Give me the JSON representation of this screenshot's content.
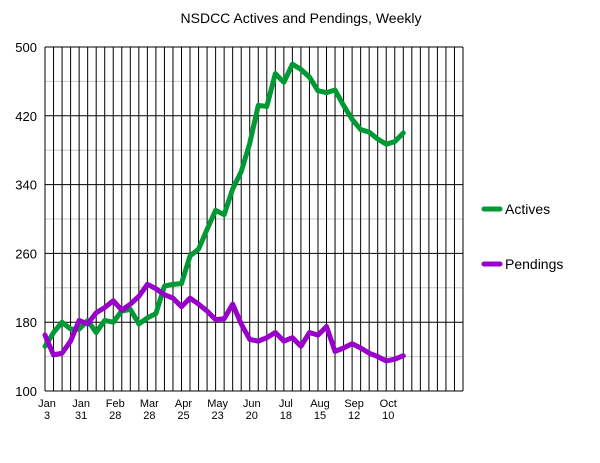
{
  "chart_data": {
    "type": "line",
    "title": "NSDCC Actives and Pendings, Weekly",
    "xlabel": "",
    "ylabel": "",
    "ylim": [
      100,
      500
    ],
    "y_ticks": [
      "100",
      "180",
      "260",
      "340",
      "420",
      "500"
    ],
    "x_tick_labels": [
      {
        "week": 0,
        "month": "Jan",
        "day": "3"
      },
      {
        "week": 4,
        "month": "Jan",
        "day": "31"
      },
      {
        "week": 8,
        "month": "Feb",
        "day": "28"
      },
      {
        "week": 12,
        "month": "Mar",
        "day": "28"
      },
      {
        "week": 16,
        "month": "Apr",
        "day": "25"
      },
      {
        "week": 20,
        "month": "May",
        "day": "23"
      },
      {
        "week": 24,
        "month": "Jun",
        "day": "20"
      },
      {
        "week": 28,
        "month": "Jul",
        "day": "18"
      },
      {
        "week": 32,
        "month": "Aug",
        "day": "15"
      },
      {
        "week": 36,
        "month": "Sep",
        "day": "12"
      },
      {
        "week": 40,
        "month": "Oct",
        "day": "10"
      }
    ],
    "x_slots": 49,
    "grid": true,
    "legend_position": "right",
    "series": [
      {
        "name": "Actives",
        "color": "#009933",
        "values": [
          152,
          168,
          180,
          172,
          172,
          182,
          168,
          182,
          180,
          193,
          195,
          178,
          185,
          190,
          222,
          224,
          225,
          257,
          265,
          288,
          310,
          305,
          335,
          355,
          388,
          432,
          431,
          469,
          459,
          480,
          474,
          465,
          449,
          447,
          450,
          432,
          416,
          404,
          401,
          393,
          387,
          390,
          400
        ]
      },
      {
        "name": "Pendings",
        "color": "#9900cc",
        "values": [
          165,
          142,
          144,
          158,
          182,
          178,
          191,
          197,
          205,
          194,
          201,
          210,
          224,
          219,
          212,
          208,
          198,
          208,
          201,
          193,
          183,
          184,
          201,
          178,
          160,
          158,
          162,
          168,
          158,
          162,
          152,
          168,
          165,
          175,
          146,
          150,
          155,
          150,
          144,
          140,
          135,
          137,
          141
        ]
      }
    ]
  }
}
